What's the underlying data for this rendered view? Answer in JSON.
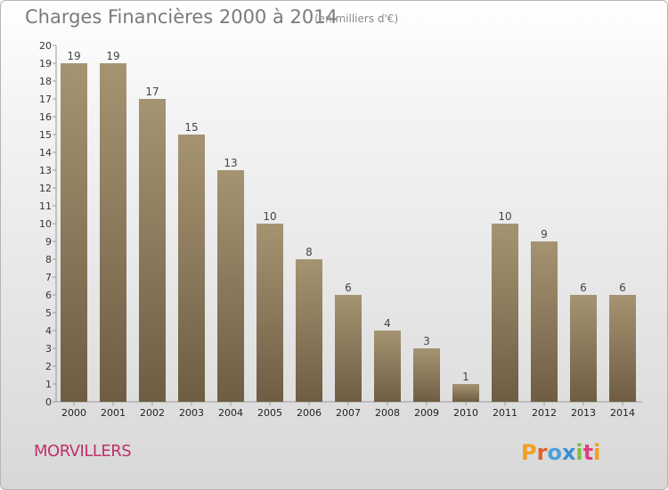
{
  "chart_data": {
    "type": "bar",
    "title": "Charges Financières 2000 à 2014",
    "unit_note": "(en milliers d'€)",
    "categories": [
      "2000",
      "2001",
      "2002",
      "2003",
      "2004",
      "2005",
      "2006",
      "2007",
      "2008",
      "2009",
      "2010",
      "2011",
      "2012",
      "2013",
      "2014"
    ],
    "values": [
      19,
      19,
      17,
      15,
      13,
      10,
      8,
      6,
      4,
      3,
      1,
      10,
      9,
      6,
      6
    ],
    "ylim": [
      0,
      20
    ],
    "yticks": [
      0,
      1,
      2,
      3,
      4,
      5,
      6,
      7,
      8,
      9,
      10,
      11,
      12,
      13,
      14,
      15,
      16,
      17,
      18,
      19,
      20
    ],
    "grid": false,
    "bar_colors": {
      "top": "#a59472",
      "bottom": "#6f5d43"
    }
  },
  "footer": {
    "town": "MORVILLERS",
    "brand": "Proxiti"
  }
}
